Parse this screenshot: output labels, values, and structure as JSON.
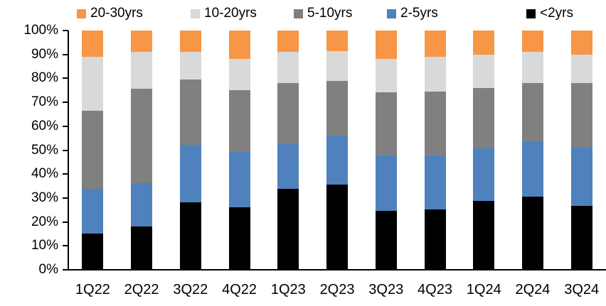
{
  "chart_data": {
    "type": "bar",
    "stacked": true,
    "percent_stacked": true,
    "title": "",
    "xlabel": "",
    "ylabel": "",
    "categories": [
      "1Q22",
      "2Q22",
      "3Q22",
      "4Q22",
      "1Q23",
      "2Q23",
      "3Q23",
      "4Q23",
      "1Q24",
      "2Q24",
      "3Q24"
    ],
    "series": [
      {
        "name": "<2yrs",
        "color": "#000000",
        "values": [
          15.0,
          18.0,
          28.0,
          26.0,
          33.5,
          35.5,
          24.5,
          25.0,
          28.5,
          30.5,
          26.5
        ]
      },
      {
        "name": "2-5yrs",
        "color": "#4F81BD",
        "values": [
          18.5,
          18.0,
          24.0,
          23.0,
          19.0,
          20.5,
          23.0,
          22.5,
          22.0,
          23.0,
          24.5
        ]
      },
      {
        "name": "5-10yrs",
        "color": "#808080",
        "values": [
          33.0,
          39.5,
          27.5,
          26.0,
          25.5,
          23.0,
          26.5,
          27.0,
          25.5,
          24.5,
          27.0
        ]
      },
      {
        "name": "10-20yrs",
        "color": "#D9D9D9",
        "values": [
          22.5,
          15.5,
          11.5,
          13.0,
          13.0,
          12.5,
          14.0,
          14.5,
          14.0,
          13.0,
          12.0
        ]
      },
      {
        "name": "20-30yrs",
        "color": "#F79646",
        "values": [
          11.0,
          9.0,
          9.0,
          12.0,
          9.0,
          8.5,
          12.0,
          11.0,
          10.0,
          9.0,
          10.0
        ]
      }
    ],
    "legend": {
      "position": "top",
      "order": [
        "20-30yrs",
        "10-20yrs",
        "5-10yrs",
        "2-5yrs",
        "<2yrs"
      ]
    },
    "y_axis": {
      "min": 0,
      "max": 100,
      "step": 10,
      "tick_labels": [
        "0%",
        "10%",
        "20%",
        "30%",
        "40%",
        "50%",
        "60%",
        "70%",
        "80%",
        "90%",
        "100%"
      ],
      "grid": false
    },
    "colors": {
      "axis": "#000000",
      "text": "#000000",
      "background": "#FFFFFF"
    }
  }
}
